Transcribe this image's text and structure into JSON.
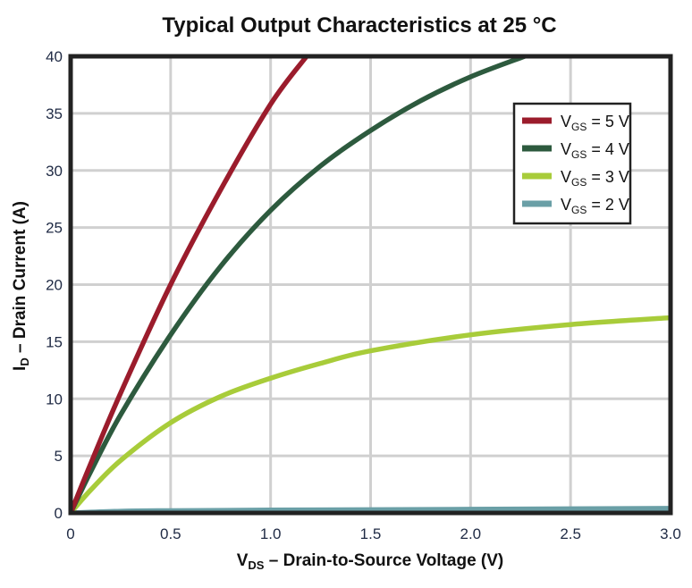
{
  "chart_data": {
    "type": "line",
    "title": "Typical Output Characteristics at 25 °C",
    "xlabel": {
      "main": "V",
      "sub": "DS",
      "rest": " – Drain-to-Source Voltage (V)"
    },
    "ylabel": {
      "main": "I",
      "sub": "D",
      "rest": " – Drain Current (A)"
    },
    "xlim": [
      0,
      3.0
    ],
    "ylim": [
      0,
      40
    ],
    "xticks": [
      "0",
      "0.5",
      "1.0",
      "1.5",
      "2.0",
      "2.5",
      "3.0"
    ],
    "xtick_values": [
      0,
      0.5,
      1.0,
      1.5,
      2.0,
      2.5,
      3.0
    ],
    "yticks": [
      "0",
      "5",
      "10",
      "15",
      "20",
      "25",
      "30",
      "35",
      "40"
    ],
    "ytick_values": [
      0,
      5,
      10,
      15,
      20,
      25,
      30,
      35,
      40
    ],
    "grid": true,
    "legend_position": "top-right",
    "series": [
      {
        "name": "V_GS = 5 V",
        "label_main": "V",
        "label_sub": "GS",
        "label_rest": " = 5 V",
        "color": "#9b1c2c",
        "x": [
          0,
          0.1,
          0.25,
          0.5,
          0.75,
          1.0,
          1.18
        ],
        "y": [
          0,
          4.3,
          10.5,
          20,
          28.3,
          35.8,
          40
        ]
      },
      {
        "name": "V_GS = 4 V",
        "label_main": "V",
        "label_sub": "GS",
        "label_rest": " = 4 V",
        "color": "#2d5a3e",
        "x": [
          0,
          0.1,
          0.25,
          0.5,
          0.75,
          1.0,
          1.25,
          1.5,
          1.75,
          2.0,
          2.27
        ],
        "y": [
          0,
          3.6,
          8.6,
          15.6,
          21.6,
          26.5,
          30.4,
          33.5,
          36.1,
          38.2,
          40
        ]
      },
      {
        "name": "V_GS = 3 V",
        "label_main": "V",
        "label_sub": "GS",
        "label_rest": " = 3 V",
        "color": "#a8cc3a",
        "x": [
          0,
          0.1,
          0.25,
          0.5,
          0.75,
          1.0,
          1.25,
          1.5,
          2.0,
          2.5,
          3.0
        ],
        "y": [
          0,
          2.0,
          4.6,
          7.9,
          10.2,
          11.8,
          13.1,
          14.2,
          15.6,
          16.5,
          17.1
        ]
      },
      {
        "name": "V_GS = 2 V",
        "label_main": "V",
        "label_sub": "GS",
        "label_rest": " = 2 V",
        "color": "#6a9fa6",
        "x": [
          0,
          0.25,
          0.5,
          1.0,
          2.0,
          3.0
        ],
        "y": [
          0,
          0.15,
          0.2,
          0.25,
          0.32,
          0.4
        ]
      }
    ]
  }
}
